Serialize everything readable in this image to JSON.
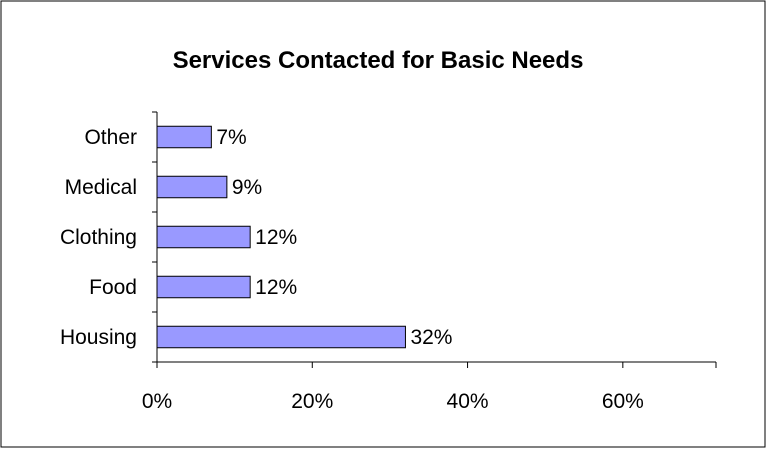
{
  "chart_data": {
    "type": "bar",
    "orientation": "horizontal",
    "title": "Services Contacted for Basic Needs",
    "xlabel": "",
    "ylabel": "",
    "categories": [
      "Housing",
      "Food",
      "Clothing",
      "Medical",
      "Other"
    ],
    "values": [
      32,
      12,
      12,
      9,
      7
    ],
    "data_labels": [
      "32%",
      "12%",
      "12%",
      "9%",
      "7%"
    ],
    "xlim": [
      0,
      72
    ],
    "xticks": [
      0,
      20,
      40,
      60
    ],
    "xtick_labels": [
      "0%",
      "20%",
      "40%",
      "60%"
    ],
    "grid": false,
    "legend": "none",
    "colors": {
      "bar_fill": "#9999ff",
      "bar_stroke": "#000000",
      "axis": "#000000",
      "frame": "#000000",
      "background": "#ffffff"
    }
  }
}
